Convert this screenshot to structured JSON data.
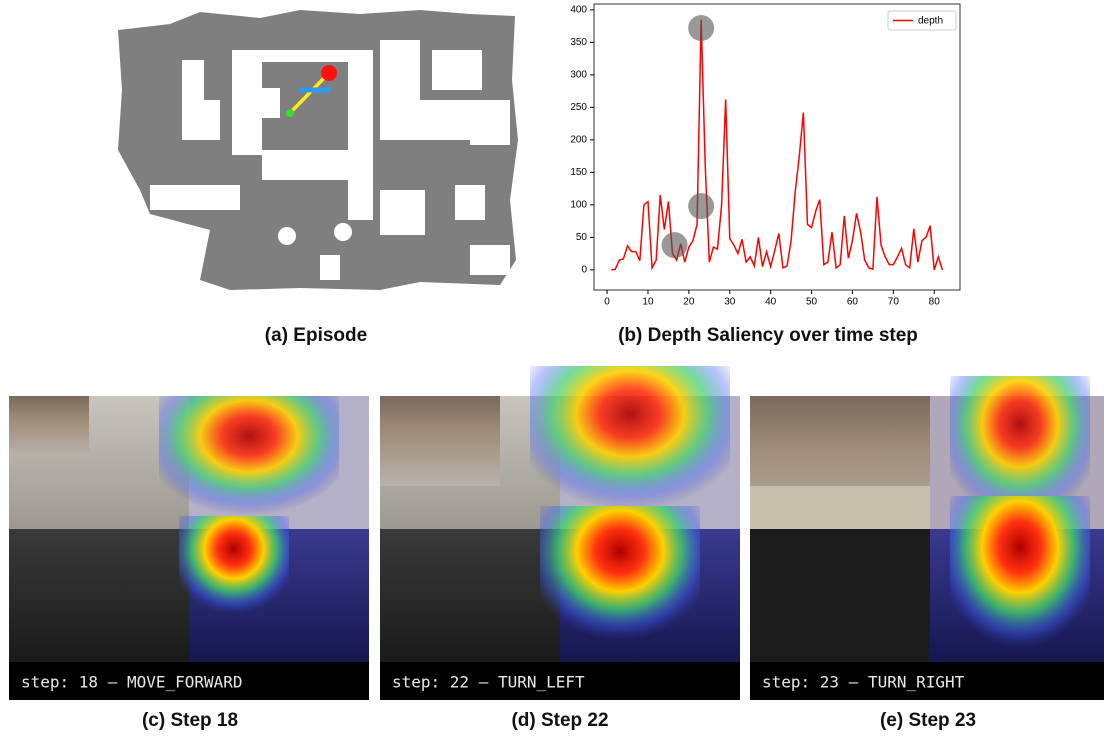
{
  "chart_data": {
    "type": "line",
    "x": [
      1,
      2,
      3,
      4,
      5,
      6,
      7,
      8,
      9,
      10,
      11,
      12,
      13,
      14,
      15,
      16,
      17,
      18,
      19,
      20,
      21,
      22,
      23,
      24,
      25,
      26,
      27,
      28,
      29,
      30,
      31,
      32,
      33,
      34,
      35,
      36,
      37,
      38,
      39,
      40,
      41,
      42,
      43,
      44,
      45,
      46,
      47,
      48,
      49,
      50,
      51,
      52,
      53,
      54,
      55,
      56,
      57,
      58,
      59,
      60,
      61,
      62,
      63,
      64,
      65,
      66,
      67,
      68,
      69,
      70,
      71,
      72,
      73,
      74,
      75,
      76,
      77,
      78,
      79,
      80,
      81,
      82
    ],
    "series": [
      {
        "name": "depth",
        "color": "#ff0000",
        "values": [
          0,
          1,
          15,
          17,
          37,
          28,
          28,
          14,
          100,
          105,
          3,
          15,
          115,
          62,
          105,
          25,
          15,
          40,
          12,
          35,
          45,
          70,
          385,
          160,
          12,
          35,
          32,
          100,
          262,
          48,
          38,
          25,
          47,
          12,
          20,
          6,
          50,
          5,
          28,
          5,
          30,
          56,
          3,
          6,
          45,
          120,
          175,
          242,
          70,
          65,
          90,
          108,
          8,
          12,
          58,
          3,
          8,
          83,
          18,
          45,
          87,
          58,
          15,
          3,
          1,
          112,
          38,
          20,
          8,
          8,
          20,
          33,
          8,
          3,
          63,
          12,
          45,
          50,
          68,
          0,
          20,
          0
        ]
      }
    ],
    "highlights": [
      {
        "x": 16.5,
        "y": 38
      },
      {
        "x": 23,
        "y": 98
      },
      {
        "x": 23,
        "y": 372
      }
    ],
    "xlim": [
      -3.2,
      86.3
    ],
    "ylim": [
      -31,
      409
    ],
    "xticks": [
      0,
      10,
      20,
      30,
      40,
      50,
      60,
      70,
      80
    ],
    "yticks": [
      0,
      50,
      100,
      150,
      200,
      250,
      300,
      350,
      400
    ],
    "legend": "upper right"
  },
  "captions": [
    "(a) Episode",
    "(b) Depth Saliency over time step",
    "(c) Step 18",
    "(d) Step 22",
    "(e) Step 23"
  ],
  "panels": [
    {
      "label": "step: 18 – MOVE_FORWARD"
    },
    {
      "label": "step: 22 – TURN_LEFT"
    },
    {
      "label": "step: 23 – TURN_RIGHT"
    }
  ]
}
